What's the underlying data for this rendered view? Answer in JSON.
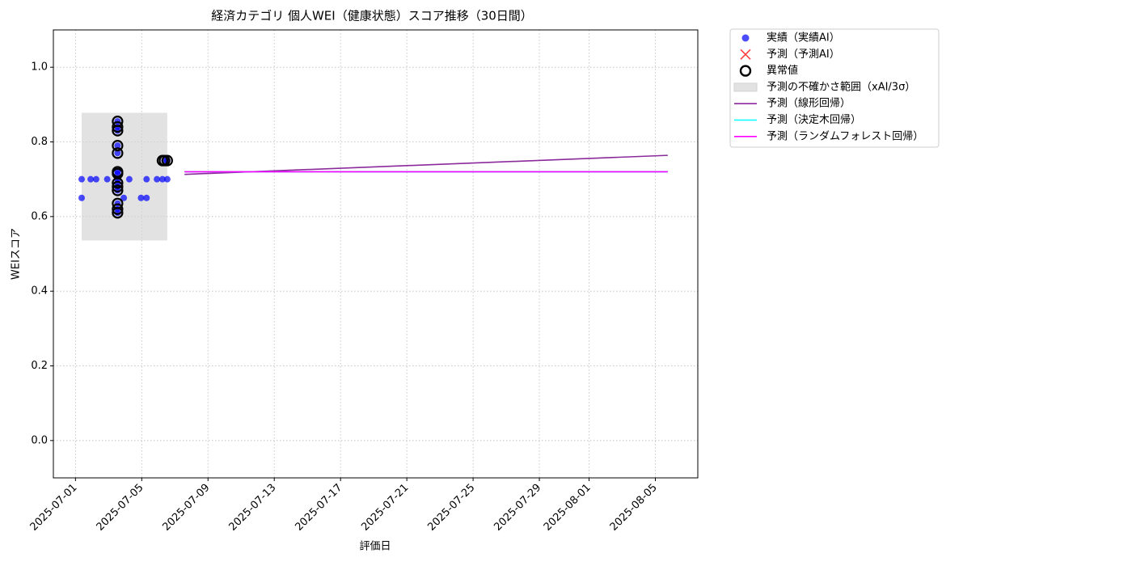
{
  "chart_data": {
    "type": "scatter",
    "title": "経済カテゴリ 個人WEI（健康状態）スコア推移（30日間）",
    "xlabel": "評価日",
    "ylabel": "WEIスコア",
    "xlim": [
      "2025-06-29T16:00",
      "2025-08-07T13:30"
    ],
    "ylim": [
      -0.1,
      1.1
    ],
    "xticks": [
      "2025-07-01",
      "2025-07-05",
      "2025-07-09",
      "2025-07-13",
      "2025-07-17",
      "2025-07-21",
      "2025-07-25",
      "2025-07-29",
      "2025-08-01",
      "2025-08-05"
    ],
    "yticks": [
      {
        "value": 0,
        "label": "0.0"
      },
      {
        "value": 0.2,
        "label": "0.2"
      },
      {
        "value": 0.4,
        "label": "0.4"
      },
      {
        "value": 0.6,
        "label": "0.6"
      },
      {
        "value": 0.8,
        "label": "0.8"
      },
      {
        "value": 1,
        "label": "1.0"
      }
    ],
    "grid": true,
    "legend": "outside upper right",
    "series": [
      {
        "name": "実績（実績AI）",
        "type": "points",
        "color": "#0000ff",
        "x": [
          "2025-07-01T09:00",
          "2025-07-01T09:00",
          "2025-07-01T22:00",
          "2025-07-02T06:00",
          "2025-07-02T22:00",
          "2025-07-03T13:00",
          "2025-07-03T13:00",
          "2025-07-03T13:00",
          "2025-07-03T13:00",
          "2025-07-03T13:00",
          "2025-07-03T13:00",
          "2025-07-03T13:00",
          "2025-07-03T13:00",
          "2025-07-03T13:00",
          "2025-07-03T13:00",
          "2025-07-03T13:00",
          "2025-07-03T13:00",
          "2025-07-03T13:00",
          "2025-07-03T13:00",
          "2025-07-03T22:00",
          "2025-07-04T06:00",
          "2025-07-04T23:00",
          "2025-07-05T07:00",
          "2025-07-05T07:00",
          "2025-07-05T22:00",
          "2025-07-06T06:00",
          "2025-07-06T09:00",
          "2025-07-06T13:00",
          "2025-07-06T13:00"
        ],
        "y": [
          0.7,
          0.65,
          0.7,
          0.7,
          0.7,
          0.7,
          0.61,
          0.62,
          0.635,
          0.67,
          0.68,
          0.69,
          0.715,
          0.72,
          0.77,
          0.79,
          0.83,
          0.84,
          0.855,
          0.65,
          0.7,
          0.65,
          0.65,
          0.7,
          0.7,
          0.7,
          0.75,
          0.7,
          0.75
        ]
      },
      {
        "name": "予測（予測AI）",
        "type": "cross",
        "color": "#ff0000",
        "x": [],
        "y": []
      },
      {
        "name": "異常値",
        "type": "ring",
        "color": "#000000",
        "x": [
          "2025-07-03T13:00",
          "2025-07-03T13:00",
          "2025-07-03T13:00",
          "2025-07-03T13:00",
          "2025-07-03T13:00",
          "2025-07-03T13:00",
          "2025-07-03T13:00",
          "2025-07-03T13:00",
          "2025-07-03T13:00",
          "2025-07-03T13:00",
          "2025-07-03T13:00",
          "2025-07-03T13:00",
          "2025-07-03T13:00",
          "2025-07-06T06:00",
          "2025-07-06T09:00",
          "2025-07-06T13:00"
        ],
        "y": [
          0.61,
          0.62,
          0.635,
          0.67,
          0.68,
          0.69,
          0.715,
          0.72,
          0.77,
          0.79,
          0.83,
          0.84,
          0.855,
          0.75,
          0.75,
          0.75
        ]
      },
      {
        "name": "予測の不確かさ範囲（xAI/3σ）",
        "type": "band",
        "color": "#d3d3d3",
        "x": [
          "2025-07-01T09:00",
          "2025-07-06T13:00"
        ],
        "lower": [
          0.536,
          0.536
        ],
        "upper": [
          0.878,
          0.878
        ]
      },
      {
        "name": "予測（線形回帰）",
        "type": "line",
        "color": "#8b2a9b",
        "x": [
          "2025-07-07T14:00",
          "2025-08-05T18:00"
        ],
        "y": [
          0.713,
          0.764
        ]
      },
      {
        "name": "予測（決定木回帰）",
        "type": "line",
        "color": "#00ffff",
        "x": [
          "2025-07-07T14:00",
          "2025-08-05T18:00"
        ],
        "y": [
          0.72,
          0.72
        ]
      },
      {
        "name": "予測（ランダムフォレスト回帰）",
        "type": "line",
        "color": "#ff00ff",
        "x": [
          "2025-07-07T14:00",
          "2025-08-05T18:00"
        ],
        "y": [
          0.72,
          0.72
        ]
      }
    ]
  }
}
